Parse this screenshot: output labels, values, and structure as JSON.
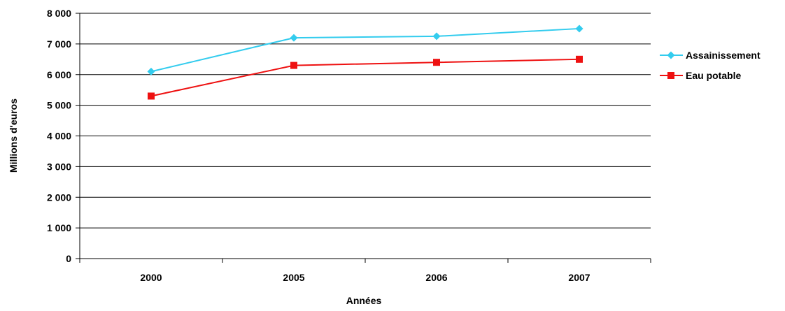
{
  "chart_data": {
    "type": "line",
    "title": "",
    "xlabel": "Années",
    "ylabel": "Millions d'euros",
    "categories": [
      "2000",
      "2005",
      "2006",
      "2007"
    ],
    "ylim": [
      0,
      8000
    ],
    "y_ticks": [
      0,
      1000,
      2000,
      3000,
      4000,
      5000,
      6000,
      7000,
      8000
    ],
    "y_tick_labels": [
      "0",
      "1 000",
      "2 000",
      "3 000",
      "4 000",
      "5 000",
      "6 000",
      "7 000",
      "8 000"
    ],
    "grid": true,
    "legend_position": "right",
    "series": [
      {
        "name": "Assainissement",
        "values": [
          6100,
          7200,
          7250,
          7500
        ],
        "color": "#33CCEE",
        "marker": "diamond"
      },
      {
        "name": "Eau potable",
        "values": [
          5300,
          6300,
          6400,
          6500
        ],
        "color": "#EE1111",
        "marker": "square"
      }
    ]
  }
}
